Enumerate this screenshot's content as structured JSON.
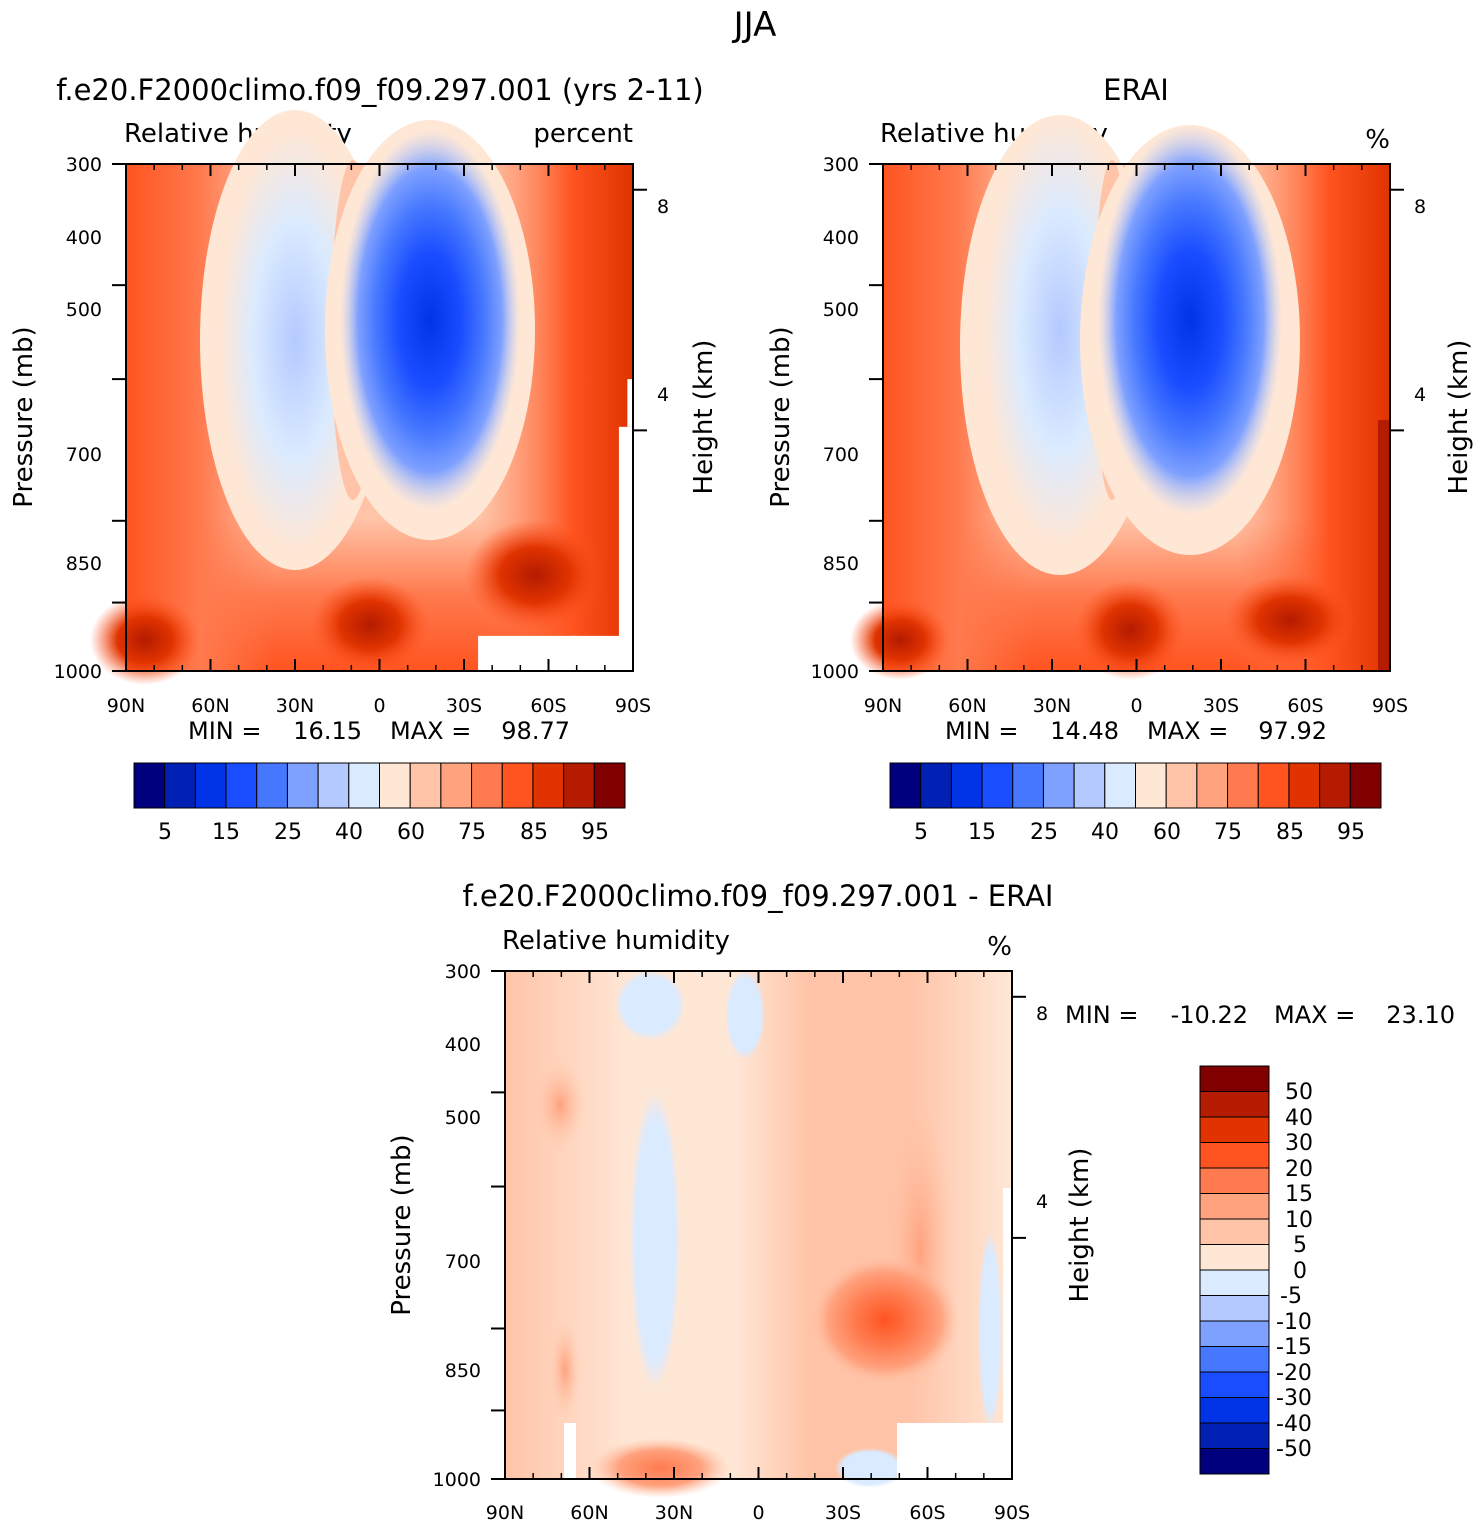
{
  "figure": {
    "title": "JJA"
  },
  "palettes": {
    "field": [
      "#00007f",
      "#0021b3",
      "#0033e6",
      "#1a4dff",
      "#4678ff",
      "#7ea0ff",
      "#b4c9ff",
      "#daeaff",
      "#ffe7d6",
      "#ffc4a8",
      "#ffa27e",
      "#ff7a4e",
      "#ff5420",
      "#e03300",
      "#b41b00",
      "#800000"
    ],
    "diff": [
      "#00007f",
      "#0021b3",
      "#0033e6",
      "#1a4dff",
      "#4678ff",
      "#7ea0ff",
      "#b4c9ff",
      "#daeaff",
      "#ffe7d6",
      "#ffc4a8",
      "#ffa27e",
      "#ff7a4e",
      "#ff5420",
      "#e03300",
      "#b41b00",
      "#800000"
    ]
  },
  "chart_data": [
    {
      "type": "heatmap",
      "title": "f.e20.F2000climo.f09_f09.297.001 (yrs 2-11)",
      "left_label": "Relative humidity",
      "right_label": "percent",
      "ylabel": "Pressure (mb)",
      "ylabel_right": "Height (km)",
      "xticks": [
        "90N",
        "60N",
        "30N",
        "0",
        "30S",
        "60S",
        "90S"
      ],
      "yticks": [
        "300",
        "400",
        "500",
        "700",
        "850",
        "1000"
      ],
      "yticks_right": [
        "8",
        "4"
      ],
      "min_label": "MIN =",
      "min_value": "16.15",
      "max_label": "MAX =",
      "max_value": "98.77",
      "colorbar_labels": [
        "5",
        "15",
        "25",
        "40",
        "60",
        "75",
        "85",
        "95"
      ],
      "lat_range": [
        90,
        -90
      ],
      "pressure_range": [
        300,
        1000
      ],
      "missing_regions": [
        {
          "lat": [
            -35,
            -90
          ],
          "p": [
            920,
            1000
          ]
        },
        {
          "lat": [
            -85,
            -90
          ],
          "p": [
            560,
            1000
          ]
        },
        {
          "lat": [
            -88,
            -90
          ],
          "p": [
            500,
            560
          ]
        },
        {
          "lat": [
            -68,
            -70
          ],
          "p": [
            920,
            1000
          ]
        }
      ]
    },
    {
      "type": "heatmap",
      "title": "ERAI",
      "left_label": "Relative humidity",
      "right_label": "%",
      "ylabel": "Pressure (mb)",
      "ylabel_right": "Height (km)",
      "xticks": [
        "90N",
        "60N",
        "30N",
        "0",
        "30S",
        "60S",
        "90S"
      ],
      "yticks": [
        "300",
        "400",
        "500",
        "700",
        "850",
        "1000"
      ],
      "yticks_right": [
        "8",
        "4"
      ],
      "min_label": "MIN =",
      "min_value": "14.48",
      "max_label": "MAX =",
      "max_value": "97.92",
      "colorbar_labels": [
        "5",
        "15",
        "25",
        "40",
        "60",
        "75",
        "85",
        "95"
      ],
      "lat_range": [
        90,
        -90
      ],
      "pressure_range": [
        300,
        1000
      ]
    },
    {
      "type": "heatmap",
      "title": "f.e20.F2000climo.f09_f09.297.001 - ERAI",
      "left_label": "Relative humidity",
      "right_label": "%",
      "ylabel": "Pressure (mb)",
      "ylabel_right": "Height (km)",
      "xticks": [
        "90N",
        "60N",
        "30N",
        "0",
        "30S",
        "60S",
        "90S"
      ],
      "yticks": [
        "300",
        "400",
        "500",
        "700",
        "850",
        "1000"
      ],
      "yticks_right": [
        "8",
        "4"
      ],
      "min_label": "MIN =",
      "min_value": "-10.22",
      "max_label": "MAX =",
      "max_value": "23.10",
      "colorbar_labels": [
        "50",
        "40",
        "30",
        "20",
        "15",
        "10",
        "5",
        "0",
        "-5",
        "-10",
        "-15",
        "-20",
        "-30",
        "-40",
        "-50"
      ],
      "lat_range": [
        90,
        -90
      ],
      "pressure_range": [
        300,
        1000
      ]
    }
  ]
}
